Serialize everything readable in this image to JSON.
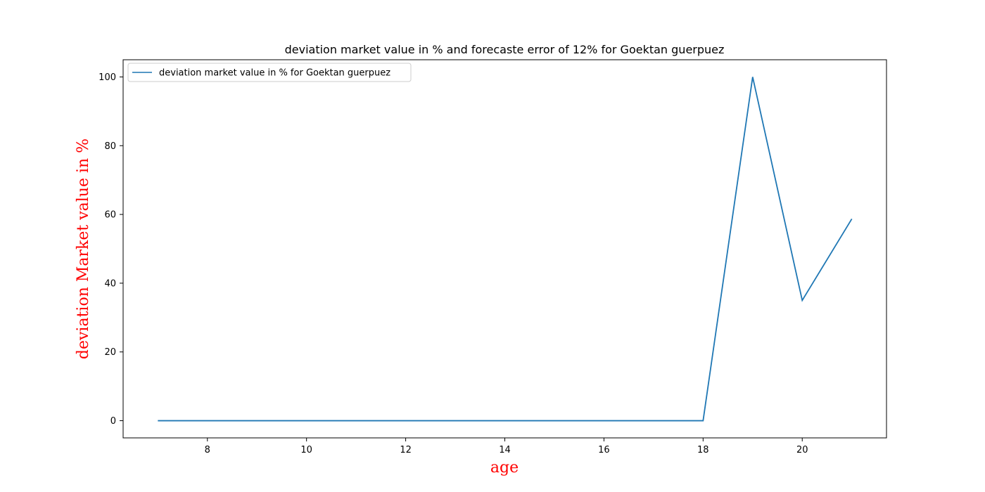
{
  "chart_data": {
    "type": "line",
    "title": "deviation market value in % and forecaste error of 12% for Goektan guerpuez",
    "xlabel": "age",
    "ylabel": "deviation Market value in %",
    "label_color": "#ff0000",
    "x_ticks": [
      8,
      10,
      12,
      14,
      16,
      18,
      20
    ],
    "y_ticks": [
      0,
      20,
      40,
      60,
      80,
      100
    ],
    "xlim": [
      6.3,
      21.7
    ],
    "ylim": [
      -5,
      105
    ],
    "grid": false,
    "legend_position": "upper-left",
    "series": [
      {
        "name": "deviation market value in % for Goektan guerpuez",
        "color": "#1f77b4",
        "x": [
          7,
          8,
          9,
          10,
          11,
          12,
          13,
          14,
          15,
          16,
          17,
          18,
          19,
          20,
          21
        ],
        "y": [
          0,
          0,
          0,
          0,
          0,
          0,
          0,
          0,
          0,
          0,
          0,
          0,
          100,
          35,
          58.7
        ]
      }
    ]
  }
}
